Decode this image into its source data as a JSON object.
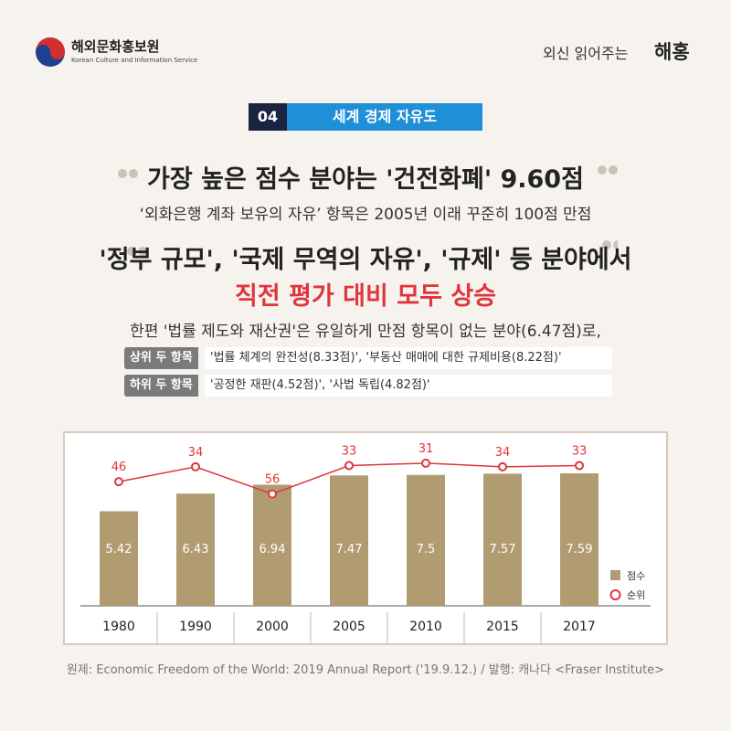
{
  "header": {
    "org": "해외문화홍보원",
    "org_en": "Korean Culture and Information Service",
    "series_name": "외신 읽어주는",
    "series_brand": "해홍"
  },
  "badge": {
    "number": "04",
    "title": "세계 경제 자유도"
  },
  "quote1": {
    "headline": "가장 높은 점수 분야는 '건전화폐' 9.60점",
    "sub": "‘외화은행 계좌 보유의 자유’ 항목은 2005년 이래 꾸준히 100점 만점"
  },
  "quote2": {
    "line1": "'정부 규모', '국제 무역의 자유', '규제' 등 분야에서",
    "line2": "직전 평가 대비 모두 상승"
  },
  "note": "한편 '법률 제도와 재산권'은 유일하게 만점 항목이 없는 분야(6.47점)로,",
  "tags": [
    {
      "key": "상위 두 항목",
      "value": "'법률 체계의 완전성(8.33점)', '부동산 매매에 대한 규제비용(8.22점)'"
    },
    {
      "key": "하위 두 항목",
      "value": "'공정한 재판(4.52점)', '사법 독립(4.82점)'"
    }
  ],
  "chart_data": {
    "type": "bar-line",
    "categories": [
      "1980",
      "1990",
      "2000",
      "2005",
      "2010",
      "2015",
      "2017"
    ],
    "series": [
      {
        "name": "점수",
        "type": "bar",
        "color": "#b19b70",
        "values": [
          5.42,
          6.43,
          6.94,
          7.47,
          7.5,
          7.57,
          7.59
        ]
      },
      {
        "name": "순위",
        "type": "line",
        "color": "#e0353d",
        "values": [
          46,
          34,
          56,
          33,
          31,
          34,
          33
        ]
      }
    ]
  },
  "source": "원제: Economic Freedom of the World: 2019 Annual Report ('19.9.12.) / 발행: 캐나다 <Fraser Institute>"
}
